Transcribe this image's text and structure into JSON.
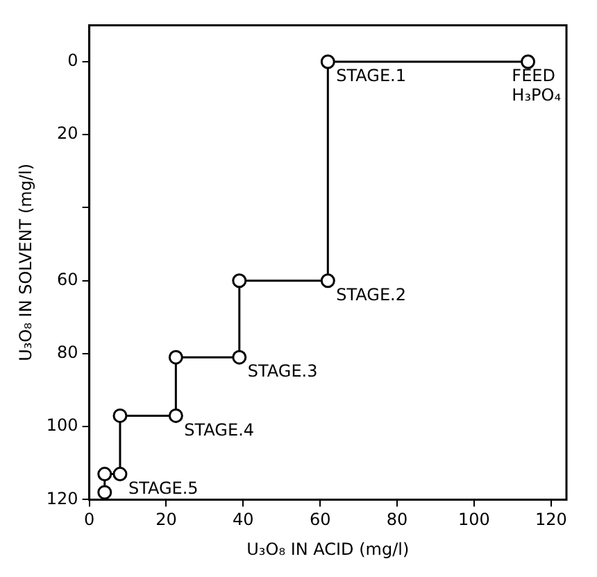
{
  "chart_data": {
    "type": "line",
    "xlabel": "U₃O₈ IN ACID (mg/l)",
    "ylabel": "U₃O₈ IN SOLVENT (mg/l)",
    "series": [
      {
        "color": "#000000",
        "x": [
          114,
          62,
          62,
          39,
          39,
          22.5,
          22.5,
          8,
          8,
          4,
          4
        ],
        "values": [
          0,
          0,
          60,
          60,
          81,
          81,
          97,
          97,
          113,
          113,
          118
        ]
      }
    ],
    "xlim": [
      0,
      124
    ],
    "xticks": [
      0,
      20,
      40,
      60,
      80,
      100,
      120
    ],
    "ylim": [
      120,
      -10
    ],
    "yticks": [
      0,
      20,
      {
        "value": 40,
        "label": null
      },
      60,
      80,
      100,
      120
    ],
    "marker": "circle",
    "line_style": "solid",
    "grid": false,
    "legend": false,
    "annotations": [
      {
        "text": "STAGE.1",
        "x": 62,
        "y": 0
      },
      {
        "text": "FEED\nH₃PO₄",
        "x": 114,
        "y": 0
      },
      {
        "text": "STAGE.2",
        "x": 62,
        "y": 60
      },
      {
        "text": "STAGE.3",
        "x": 39,
        "y": 81
      },
      {
        "text": "STAGE.4",
        "x": 22.5,
        "y": 97
      },
      {
        "text": "STAGE.5",
        "x": 8,
        "y": 113
      }
    ]
  }
}
